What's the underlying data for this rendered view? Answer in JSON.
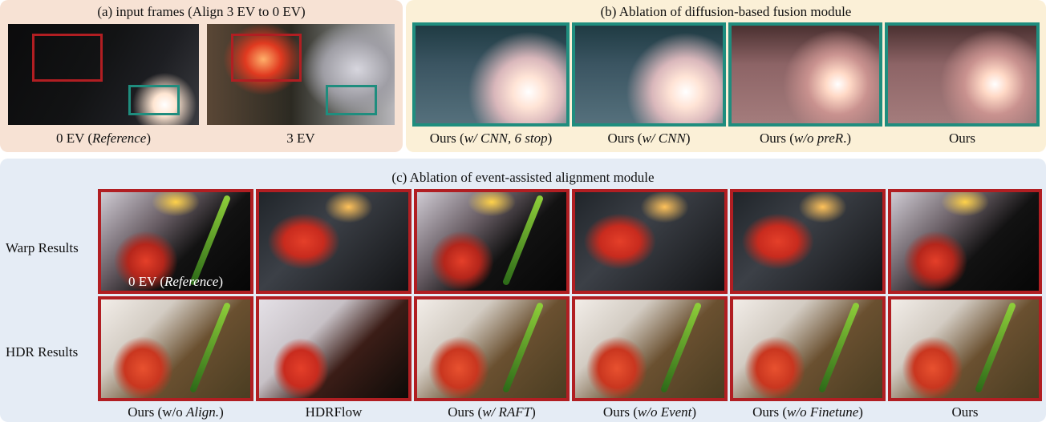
{
  "panel_a": {
    "title": "(a) input frames (Align 3 EV to 0 EV)",
    "captions": [
      {
        "pre": "0 EV (",
        "em": "Reference",
        "post": ")"
      },
      {
        "pre": "3 EV",
        "em": "",
        "post": ""
      }
    ]
  },
  "panel_b": {
    "title": "(b) Ablation of diffusion-based fusion module",
    "captions": [
      {
        "pre": "Ours (",
        "em": "w/ CNN, 6 stop",
        "post": ")"
      },
      {
        "pre": "Ours (",
        "em": "w/ CNN",
        "post": ")"
      },
      {
        "pre": "Ours (",
        "em": "w/o preR",
        "post": ".)"
      },
      {
        "pre": "Ours",
        "em": "",
        "post": ""
      }
    ]
  },
  "panel_c": {
    "title": "(c) Ablation of event-assisted alignment module",
    "row_labels": [
      "Warp Results",
      "HDR Results"
    ],
    "overlay": {
      "pre": "0 EV (",
      "em": "Reference",
      "post": ")"
    },
    "captions": [
      {
        "pre": "Ours (w/o ",
        "em": "Align.",
        "post": ")"
      },
      {
        "pre": "HDRFlow",
        "em": "",
        "post": ""
      },
      {
        "pre": "Ours (",
        "em": "w/ RAFT",
        "post": ")"
      },
      {
        "pre": "Ours (",
        "em": "w/o Event",
        "post": ")"
      },
      {
        "pre": "Ours (",
        "em": "w/o Finetune",
        "post": ")"
      },
      {
        "pre": "Ours",
        "em": "",
        "post": ""
      }
    ]
  },
  "colors": {
    "teal_border": "#1f8d7e",
    "red_border": "#b11e22"
  }
}
